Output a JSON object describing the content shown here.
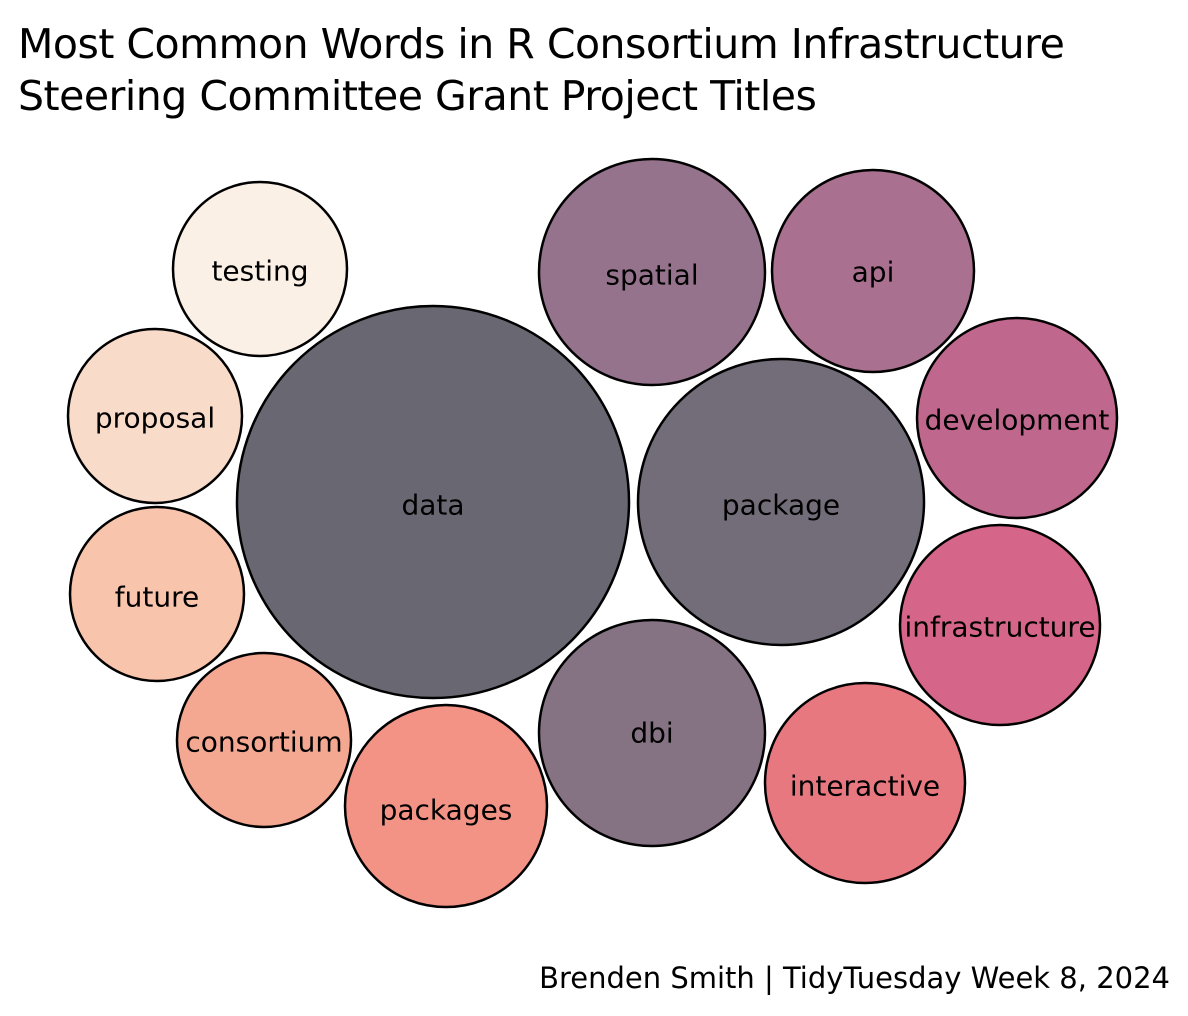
{
  "title": {
    "line1": "Most Common Words in R Consortium Infrastructure",
    "line2": "Steering Committee Grant Project Titles"
  },
  "caption": "Brenden Smith | TidyTuesday Week 8, 2024",
  "chart_data": {
    "type": "bubble",
    "title": "Most Common Words in R Consortium Infrastructure Steering Committee Grant Project Titles",
    "caption": "Brenden Smith | TidyTuesday Week 8, 2024",
    "legend": "none",
    "grid": false,
    "bubbles": [
      {
        "word": "data",
        "color": "#696872"
      },
      {
        "word": "package",
        "color": "#736c79"
      },
      {
        "word": "spatial",
        "color": "#96738c"
      },
      {
        "word": "api",
        "color": "#a9708f"
      },
      {
        "word": "development",
        "color": "#c0678e"
      },
      {
        "word": "infrastructure",
        "color": "#d66689"
      },
      {
        "word": "interactive",
        "color": "#e87880"
      },
      {
        "word": "dbi",
        "color": "#857384"
      },
      {
        "word": "packages",
        "color": "#f29386"
      },
      {
        "word": "consortium",
        "color": "#f4a891"
      },
      {
        "word": "future",
        "color": "#f8c4ab"
      },
      {
        "word": "proposal",
        "color": "#f9dbca"
      },
      {
        "word": "testing",
        "color": "#fbf0e6"
      }
    ]
  }
}
